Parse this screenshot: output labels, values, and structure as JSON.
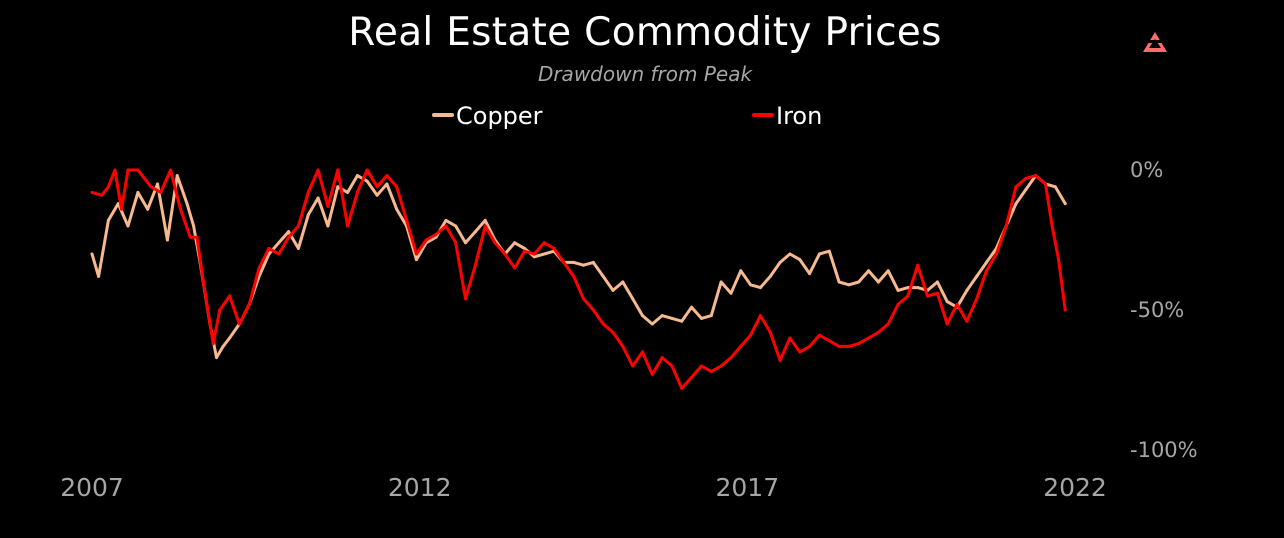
{
  "chart_data": {
    "type": "line",
    "title": "Real Estate Commodity Prices",
    "subtitle": "Drawdown from Peak",
    "xlabel": "",
    "ylabel": "",
    "x_ticks": [
      "2007",
      "2012",
      "2017",
      "2022"
    ],
    "x_tick_values": [
      2007,
      2012,
      2017,
      2022
    ],
    "y_ticks": [
      "0%",
      "-50%",
      "-100%"
    ],
    "y_tick_values": [
      0,
      -50,
      -100
    ],
    "xlim": [
      2007,
      2022
    ],
    "ylim": [
      -100,
      0
    ],
    "grid": false,
    "legend_position": "top-center",
    "series": [
      {
        "name": "Copper",
        "color": "#f7b98f",
        "x": [
          2007.0,
          2007.1,
          2007.25,
          2007.4,
          2007.55,
          2007.7,
          2007.85,
          2008.0,
          2008.15,
          2008.3,
          2008.45,
          2008.55,
          2008.65,
          2008.8,
          2008.9,
          2009.0,
          2009.1,
          2009.25,
          2009.4,
          2009.55,
          2009.7,
          2009.85,
          2010.0,
          2010.15,
          2010.3,
          2010.45,
          2010.6,
          2010.75,
          2010.9,
          2011.05,
          2011.2,
          2011.35,
          2011.5,
          2011.65,
          2011.8,
          2011.95,
          2012.1,
          2012.25,
          2012.4,
          2012.55,
          2012.7,
          2012.85,
          2013.0,
          2013.15,
          2013.3,
          2013.45,
          2013.6,
          2013.75,
          2013.9,
          2014.05,
          2014.2,
          2014.35,
          2014.5,
          2014.65,
          2014.8,
          2014.95,
          2015.1,
          2015.25,
          2015.4,
          2015.55,
          2015.7,
          2015.85,
          2016.0,
          2016.15,
          2016.3,
          2016.45,
          2016.6,
          2016.75,
          2016.9,
          2017.05,
          2017.2,
          2017.35,
          2017.5,
          2017.65,
          2017.8,
          2017.95,
          2018.1,
          2018.25,
          2018.4,
          2018.55,
          2018.7,
          2018.85,
          2019.0,
          2019.15,
          2019.3,
          2019.45,
          2019.6,
          2019.75,
          2019.9,
          2020.05,
          2020.2,
          2020.35,
          2020.5,
          2020.65,
          2020.8,
          2020.95,
          2021.1,
          2021.25,
          2021.4,
          2021.55,
          2021.7,
          2021.85
        ],
        "values": [
          -30,
          -38,
          -18,
          -12,
          -20,
          -8,
          -14,
          -5,
          -25,
          -2,
          -12,
          -20,
          -33,
          -55,
          -67,
          -63,
          -60,
          -55,
          -48,
          -38,
          -30,
          -26,
          -22,
          -28,
          -16,
          -10,
          -20,
          -6,
          -8,
          -2,
          -4,
          -9,
          -5,
          -14,
          -20,
          -32,
          -26,
          -24,
          -18,
          -20,
          -26,
          -22,
          -18,
          -25,
          -30,
          -26,
          -28,
          -31,
          -30,
          -29,
          -33,
          -33,
          -34,
          -33,
          -38,
          -43,
          -40,
          -46,
          -52,
          -55,
          -52,
          -53,
          -54,
          -49,
          -53,
          -52,
          -40,
          -44,
          -36,
          -41,
          -42,
          -38,
          -33,
          -30,
          -32,
          -37,
          -30,
          -29,
          -40,
          -41,
          -40,
          -36,
          -40,
          -36,
          -43,
          -42,
          -42,
          -43,
          -40,
          -47,
          -49,
          -43,
          -38,
          -33,
          -28,
          -20,
          -12,
          -7,
          -2,
          -5,
          -6,
          -12
        ]
      },
      {
        "name": "Iron",
        "color": "#ff0000",
        "x": [
          2007.0,
          2007.15,
          2007.25,
          2007.35,
          2007.45,
          2007.55,
          2007.7,
          2007.9,
          2008.05,
          2008.2,
          2008.35,
          2008.5,
          2008.6,
          2008.7,
          2008.85,
          2008.95,
          2009.1,
          2009.25,
          2009.4,
          2009.55,
          2009.7,
          2009.85,
          2010.0,
          2010.15,
          2010.3,
          2010.45,
          2010.6,
          2010.75,
          2010.9,
          2011.05,
          2011.2,
          2011.35,
          2011.5,
          2011.65,
          2011.8,
          2011.95,
          2012.1,
          2012.25,
          2012.4,
          2012.55,
          2012.7,
          2012.85,
          2013.0,
          2013.15,
          2013.3,
          2013.45,
          2013.6,
          2013.75,
          2013.9,
          2014.05,
          2014.2,
          2014.35,
          2014.5,
          2014.65,
          2014.8,
          2014.95,
          2015.1,
          2015.25,
          2015.4,
          2015.55,
          2015.7,
          2015.85,
          2016.0,
          2016.15,
          2016.3,
          2016.45,
          2016.6,
          2016.75,
          2016.9,
          2017.05,
          2017.2,
          2017.35,
          2017.5,
          2017.65,
          2017.8,
          2017.95,
          2018.1,
          2018.25,
          2018.4,
          2018.55,
          2018.7,
          2018.85,
          2019.0,
          2019.15,
          2019.3,
          2019.45,
          2019.6,
          2019.75,
          2019.9,
          2020.05,
          2020.2,
          2020.35,
          2020.5,
          2020.65,
          2020.8,
          2020.95,
          2021.1,
          2021.25,
          2021.4,
          2021.55,
          2021.65,
          2021.75,
          2021.85
        ],
        "values": [
          -8,
          -9,
          -6,
          0,
          -14,
          0,
          0,
          -6,
          -8,
          0,
          -14,
          -24,
          -24,
          -40,
          -62,
          -50,
          -45,
          -55,
          -48,
          -35,
          -28,
          -30,
          -24,
          -20,
          -8,
          0,
          -13,
          0,
          -20,
          -8,
          0,
          -6,
          -2,
          -6,
          -18,
          -30,
          -25,
          -23,
          -20,
          -26,
          -46,
          -34,
          -20,
          -26,
          -30,
          -35,
          -29,
          -30,
          -26,
          -28,
          -33,
          -38,
          -46,
          -50,
          -55,
          -58,
          -63,
          -70,
          -65,
          -73,
          -67,
          -70,
          -78,
          -74,
          -70,
          -72,
          -70,
          -67,
          -63,
          -59,
          -52,
          -58,
          -68,
          -60,
          -65,
          -63,
          -59,
          -61,
          -63,
          -63,
          -62,
          -60,
          -58,
          -55,
          -48,
          -45,
          -34,
          -45,
          -44,
          -55,
          -48,
          -54,
          -46,
          -36,
          -30,
          -20,
          -6,
          -3,
          -2,
          -5,
          -20,
          -32,
          -50
        ]
      }
    ]
  }
}
